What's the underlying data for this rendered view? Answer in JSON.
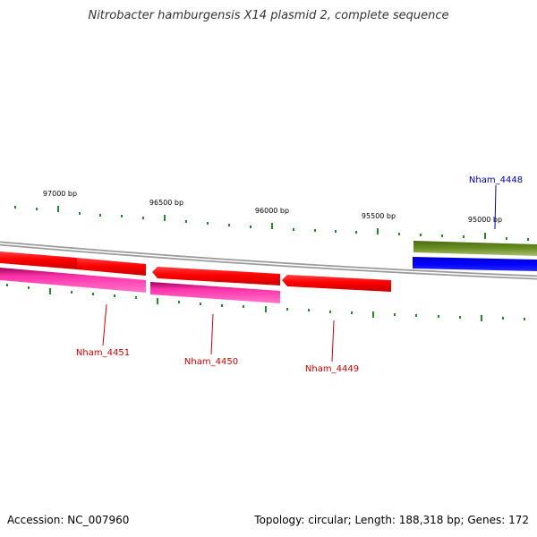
{
  "title": "Nitrobacter hamburgensis X14 plasmid 2, complete sequence",
  "footer": {
    "accession": "Accession: NC_007960",
    "stats": "Topology: circular; Length: 188,318 bp; Genes: 172"
  },
  "colors": {
    "backbone": "#8a8a8a",
    "forward_cds": "#ff0000",
    "reverse_cds": "#ff0000",
    "forward_gene": "#cc0088",
    "olive_feature": "#6b8e23",
    "blue_feature": "#0000ff",
    "tick": "#228b22",
    "red_label": "#cc0000",
    "blue_label": "#0000aa"
  },
  "ruler": {
    "labels": [
      "97000 bp",
      "96500 bp",
      "96000 bp",
      "95500 bp",
      "95000 bp"
    ]
  },
  "genes": [
    {
      "name": "Nham_4451",
      "color": "red"
    },
    {
      "name": "Nham_4450",
      "color": "red"
    },
    {
      "name": "Nham_4449",
      "color": "red"
    },
    {
      "name": "Nham_4448",
      "color": "blue"
    }
  ]
}
